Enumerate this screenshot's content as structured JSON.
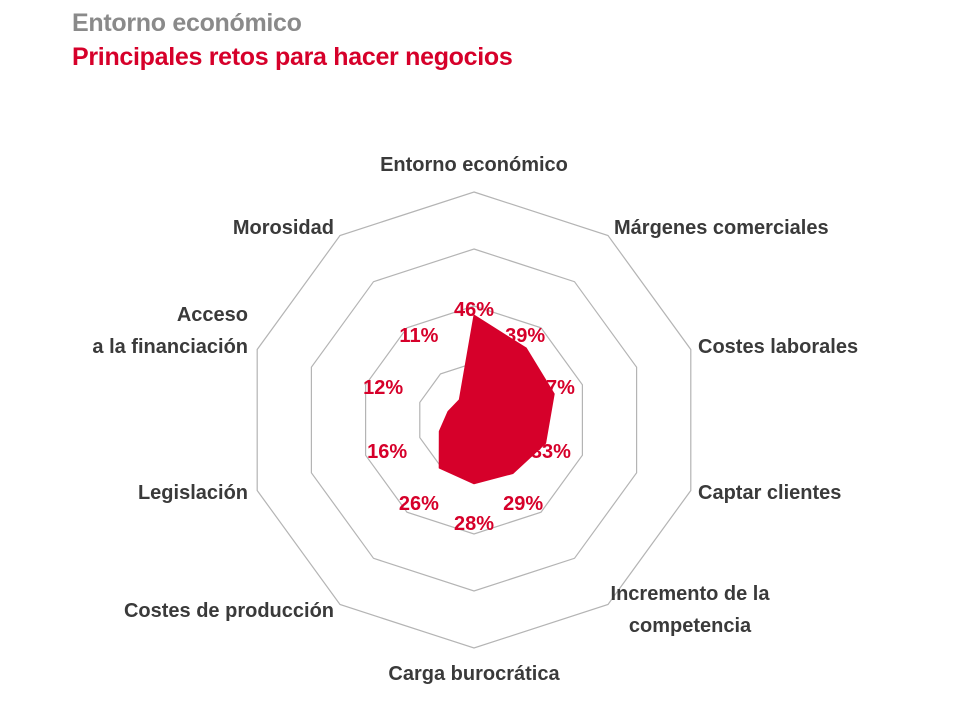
{
  "header": {
    "supertitle": "Entorno económico",
    "title": "Principales retos para hacer negocios"
  },
  "colors": {
    "accent": "#d6002a",
    "grid": "#b4b4b4",
    "supertitle": "#8a8a8a",
    "axis_label": "#3a3a3a"
  },
  "chart_data": {
    "type": "radar",
    "title": "Principales retos para hacer negocios",
    "value_suffix": "%",
    "rmax": 100,
    "rings": 4,
    "categories": [
      [
        "Entorno económico"
      ],
      [
        "Márgenes comerciales"
      ],
      [
        "Costes laborales"
      ],
      [
        "Captar clientes"
      ],
      [
        "Incremento de la",
        "competencia"
      ],
      [
        "Carga burocrática"
      ],
      [
        "Costes de producción"
      ],
      [
        "Legislación"
      ],
      [
        "Acceso",
        "a la financiación"
      ],
      [
        "Morosidad"
      ]
    ],
    "values": [
      46,
      39,
      37,
      33,
      29,
      28,
      26,
      16,
      12,
      11
    ],
    "value_labels": [
      "46%",
      "39%",
      "37%",
      "33%",
      "29%",
      "28%",
      "26%",
      "16%",
      "12%",
      "11%"
    ],
    "grid": true,
    "legend": "none"
  }
}
